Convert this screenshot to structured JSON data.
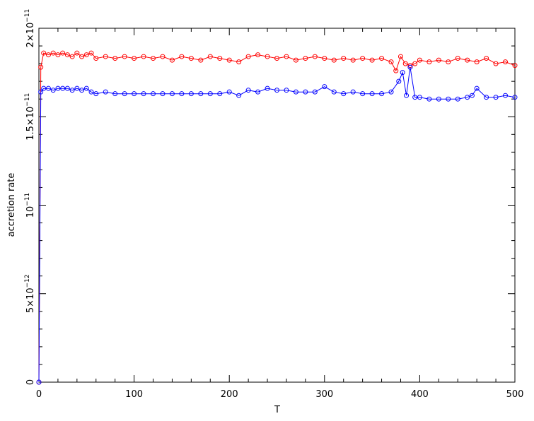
{
  "chart_data": {
    "type": "scatter",
    "title": "",
    "xlabel": "T",
    "ylabel": "accretion rate",
    "xlim": [
      0,
      500
    ],
    "ylim": [
      0,
      2e-11
    ],
    "x_ticks": [
      0,
      100,
      200,
      300,
      400,
      500
    ],
    "x_tick_labels": [
      "0",
      "100",
      "200",
      "300",
      "400",
      "500"
    ],
    "y_ticks": [
      {
        "value": 0,
        "mantissa": "0",
        "exponent": ""
      },
      {
        "value": 5e-12,
        "mantissa": "5×10",
        "exponent": "−12"
      },
      {
        "value": 1e-11,
        "mantissa": "10",
        "exponent": "−11"
      },
      {
        "value": 1.5e-11,
        "mantissa": "1.5×10",
        "exponent": "−11"
      },
      {
        "value": 2e-11,
        "mantissa": "2×10",
        "exponent": "−11"
      }
    ],
    "grid": false,
    "legend": "none",
    "series": [
      {
        "color": "#ff0000",
        "marker": "open-circle",
        "x": [
          0,
          2,
          5,
          10,
          15,
          20,
          25,
          30,
          35,
          40,
          45,
          50,
          55,
          60,
          70,
          80,
          90,
          100,
          110,
          120,
          130,
          140,
          150,
          160,
          170,
          180,
          190,
          200,
          210,
          220,
          230,
          240,
          250,
          260,
          270,
          280,
          290,
          300,
          310,
          320,
          330,
          340,
          350,
          360,
          370,
          375,
          380,
          385,
          390,
          395,
          400,
          410,
          420,
          430,
          440,
          450,
          460,
          470,
          480,
          490,
          500
        ],
        "y": [
          0,
          1.78e-11,
          1.86e-11,
          1.85e-11,
          1.86e-11,
          1.85e-11,
          1.86e-11,
          1.85e-11,
          1.84e-11,
          1.86e-11,
          1.84e-11,
          1.85e-11,
          1.86e-11,
          1.83e-11,
          1.84e-11,
          1.83e-11,
          1.84e-11,
          1.83e-11,
          1.84e-11,
          1.83e-11,
          1.84e-11,
          1.82e-11,
          1.84e-11,
          1.83e-11,
          1.82e-11,
          1.84e-11,
          1.83e-11,
          1.82e-11,
          1.81e-11,
          1.84e-11,
          1.85e-11,
          1.84e-11,
          1.83e-11,
          1.84e-11,
          1.82e-11,
          1.83e-11,
          1.84e-11,
          1.83e-11,
          1.82e-11,
          1.83e-11,
          1.82e-11,
          1.83e-11,
          1.82e-11,
          1.83e-11,
          1.81e-11,
          1.76e-11,
          1.84e-11,
          1.8e-11,
          1.79e-11,
          1.8e-11,
          1.82e-11,
          1.81e-11,
          1.82e-11,
          1.81e-11,
          1.83e-11,
          1.82e-11,
          1.81e-11,
          1.83e-11,
          1.8e-11,
          1.81e-11,
          1.79e-11
        ]
      },
      {
        "color": "#0000ff",
        "marker": "open-circle",
        "x": [
          0,
          2,
          5,
          10,
          15,
          20,
          25,
          30,
          35,
          40,
          45,
          50,
          55,
          60,
          70,
          80,
          90,
          100,
          110,
          120,
          130,
          140,
          150,
          160,
          170,
          180,
          190,
          200,
          210,
          220,
          230,
          240,
          250,
          260,
          270,
          280,
          290,
          300,
          310,
          320,
          330,
          340,
          350,
          360,
          370,
          378,
          382,
          386,
          390,
          395,
          400,
          410,
          420,
          430,
          440,
          450,
          455,
          460,
          470,
          480,
          490,
          500
        ],
        "y": [
          0,
          1.64e-11,
          1.66e-11,
          1.66e-11,
          1.65e-11,
          1.66e-11,
          1.66e-11,
          1.66e-11,
          1.65e-11,
          1.66e-11,
          1.65e-11,
          1.66e-11,
          1.64e-11,
          1.63e-11,
          1.64e-11,
          1.63e-11,
          1.63e-11,
          1.63e-11,
          1.63e-11,
          1.63e-11,
          1.63e-11,
          1.63e-11,
          1.63e-11,
          1.63e-11,
          1.63e-11,
          1.63e-11,
          1.63e-11,
          1.64e-11,
          1.62e-11,
          1.65e-11,
          1.64e-11,
          1.66e-11,
          1.65e-11,
          1.65e-11,
          1.64e-11,
          1.64e-11,
          1.64e-11,
          1.67e-11,
          1.64e-11,
          1.63e-11,
          1.64e-11,
          1.63e-11,
          1.63e-11,
          1.63e-11,
          1.64e-11,
          1.7e-11,
          1.75e-11,
          1.62e-11,
          1.78e-11,
          1.61e-11,
          1.61e-11,
          1.6e-11,
          1.6e-11,
          1.6e-11,
          1.6e-11,
          1.61e-11,
          1.62e-11,
          1.66e-11,
          1.61e-11,
          1.61e-11,
          1.62e-11,
          1.61e-11
        ]
      }
    ]
  }
}
